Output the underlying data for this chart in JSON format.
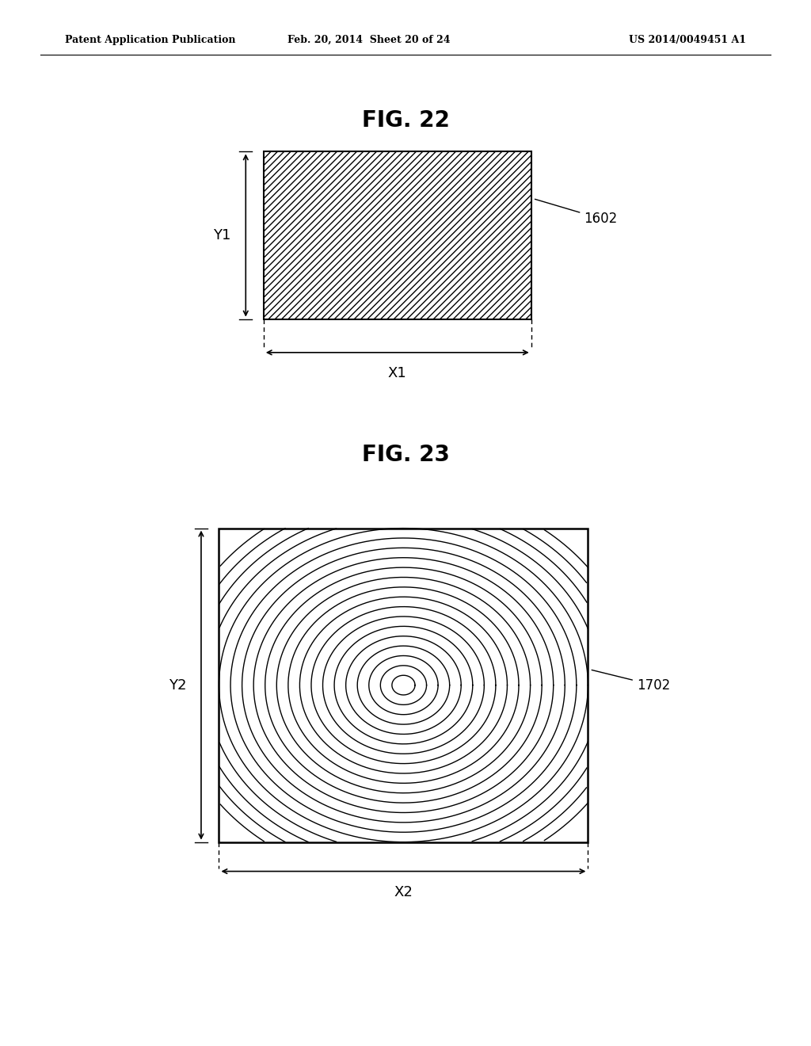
{
  "bg_color": "#ffffff",
  "header_left": "Patent Application Publication",
  "header_mid": "Feb. 20, 2014  Sheet 20 of 24",
  "header_right": "US 2014/0049451 A1",
  "fig22_title": "FIG. 22",
  "fig23_title": "FIG. 23",
  "fig22_label": "1602",
  "fig23_label": "1702",
  "fig22_xlabel": "X1",
  "fig22_ylabel": "Y1",
  "fig23_xlabel": "X2",
  "fig23_ylabel": "Y2"
}
